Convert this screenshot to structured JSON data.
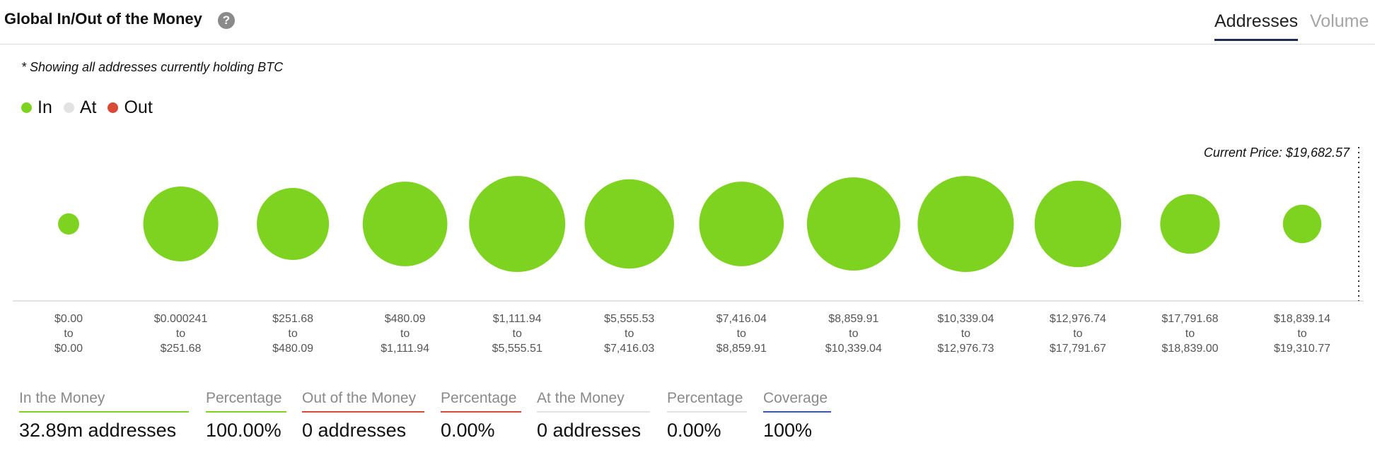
{
  "header": {
    "title": "Global In/Out of the Money",
    "help_symbol": "?",
    "tabs": [
      {
        "label": "Addresses",
        "active": true
      },
      {
        "label": "Volume",
        "active": false
      }
    ]
  },
  "note": "* Showing all addresses currently holding BTC",
  "legend": [
    {
      "label": "In",
      "color": "#7ed321"
    },
    {
      "label": "At",
      "color": "#e2e2e2"
    },
    {
      "label": "Out",
      "color": "#d94a36"
    }
  ],
  "current_price_label": "Current Price: $19,682.57",
  "chart_data": {
    "type": "scatter",
    "encoding": "bubble size = number of addresses in each price range",
    "categories": [
      [
        "$0.00",
        "to",
        "$0.00"
      ],
      [
        "$0.000241",
        "to",
        "$251.68"
      ],
      [
        "$251.68",
        "to",
        "$480.09"
      ],
      [
        "$480.09",
        "to",
        "$1,111.94"
      ],
      [
        "$1,111.94",
        "to",
        "$5,555.51"
      ],
      [
        "$5,555.53",
        "to",
        "$7,416.03"
      ],
      [
        "$7,416.04",
        "to",
        "$8,859.91"
      ],
      [
        "$8,859.91",
        "to",
        "$10,339.04"
      ],
      [
        "$10,339.04",
        "to",
        "$12,976.73"
      ],
      [
        "$12,976.74",
        "to",
        "$17,791.67"
      ],
      [
        "$17,791.68",
        "to",
        "$18,839.00"
      ],
      [
        "$18,839.14",
        "to",
        "$19,310.77"
      ]
    ],
    "series": [
      {
        "name": "In",
        "color": "#7ed321",
        "relative_sizes": [
          0.22,
          0.78,
          0.75,
          0.88,
          1.0,
          0.93,
          0.88,
          0.97,
          1.0,
          0.9,
          0.62,
          0.4
        ]
      }
    ]
  },
  "summary": [
    {
      "label": "In the Money",
      "value": "32.89m addresses",
      "color": "#7ed321"
    },
    {
      "label": "Percentage",
      "value": "100.00%",
      "color": "#7ed321"
    },
    {
      "label": "Out of the Money",
      "value": "0 addresses",
      "color": "#d94a36"
    },
    {
      "label": "Percentage",
      "value": "0.00%",
      "color": "#d94a36"
    },
    {
      "label": "At the Money",
      "value": "0 addresses",
      "color": "#e2e2e2"
    },
    {
      "label": "Percentage",
      "value": "0.00%",
      "color": "#e2e2e2"
    },
    {
      "label": "Coverage",
      "value": "100%",
      "color": "#3a5aa8"
    }
  ]
}
